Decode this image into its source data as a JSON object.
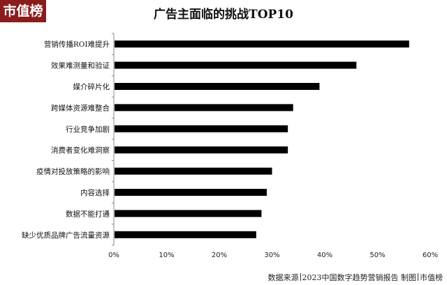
{
  "brand": {
    "logo_text": "市值榜"
  },
  "chart_data": {
    "type": "bar",
    "orientation": "horizontal",
    "title": "广告主面临的挑战TOP10",
    "categories": [
      "营销传播ROI难提升",
      "效果难测量和验证",
      "媒介碎片化",
      "跨媒体资源难整合",
      "行业竞争加剧",
      "消费者变化难洞察",
      "疫情对投放策略的影响",
      "内容选择",
      "数据不能打通",
      "缺少优质品牌广告流量资源"
    ],
    "values": [
      56,
      46,
      39,
      34,
      33,
      33,
      30,
      29,
      28,
      27
    ],
    "xlim": [
      0,
      60
    ],
    "xticks": [
      "0%",
      "10%",
      "20%",
      "30%",
      "40%",
      "50%",
      "60%"
    ],
    "xlabel": "",
    "ylabel": "",
    "bar_color": "#000000",
    "grid": false,
    "legend": "none"
  },
  "footer": {
    "source_label": "数据来源",
    "source_text": "2023中国数字趋势营销报告",
    "credit_label": "制图",
    "credit_text": "市值榜"
  }
}
